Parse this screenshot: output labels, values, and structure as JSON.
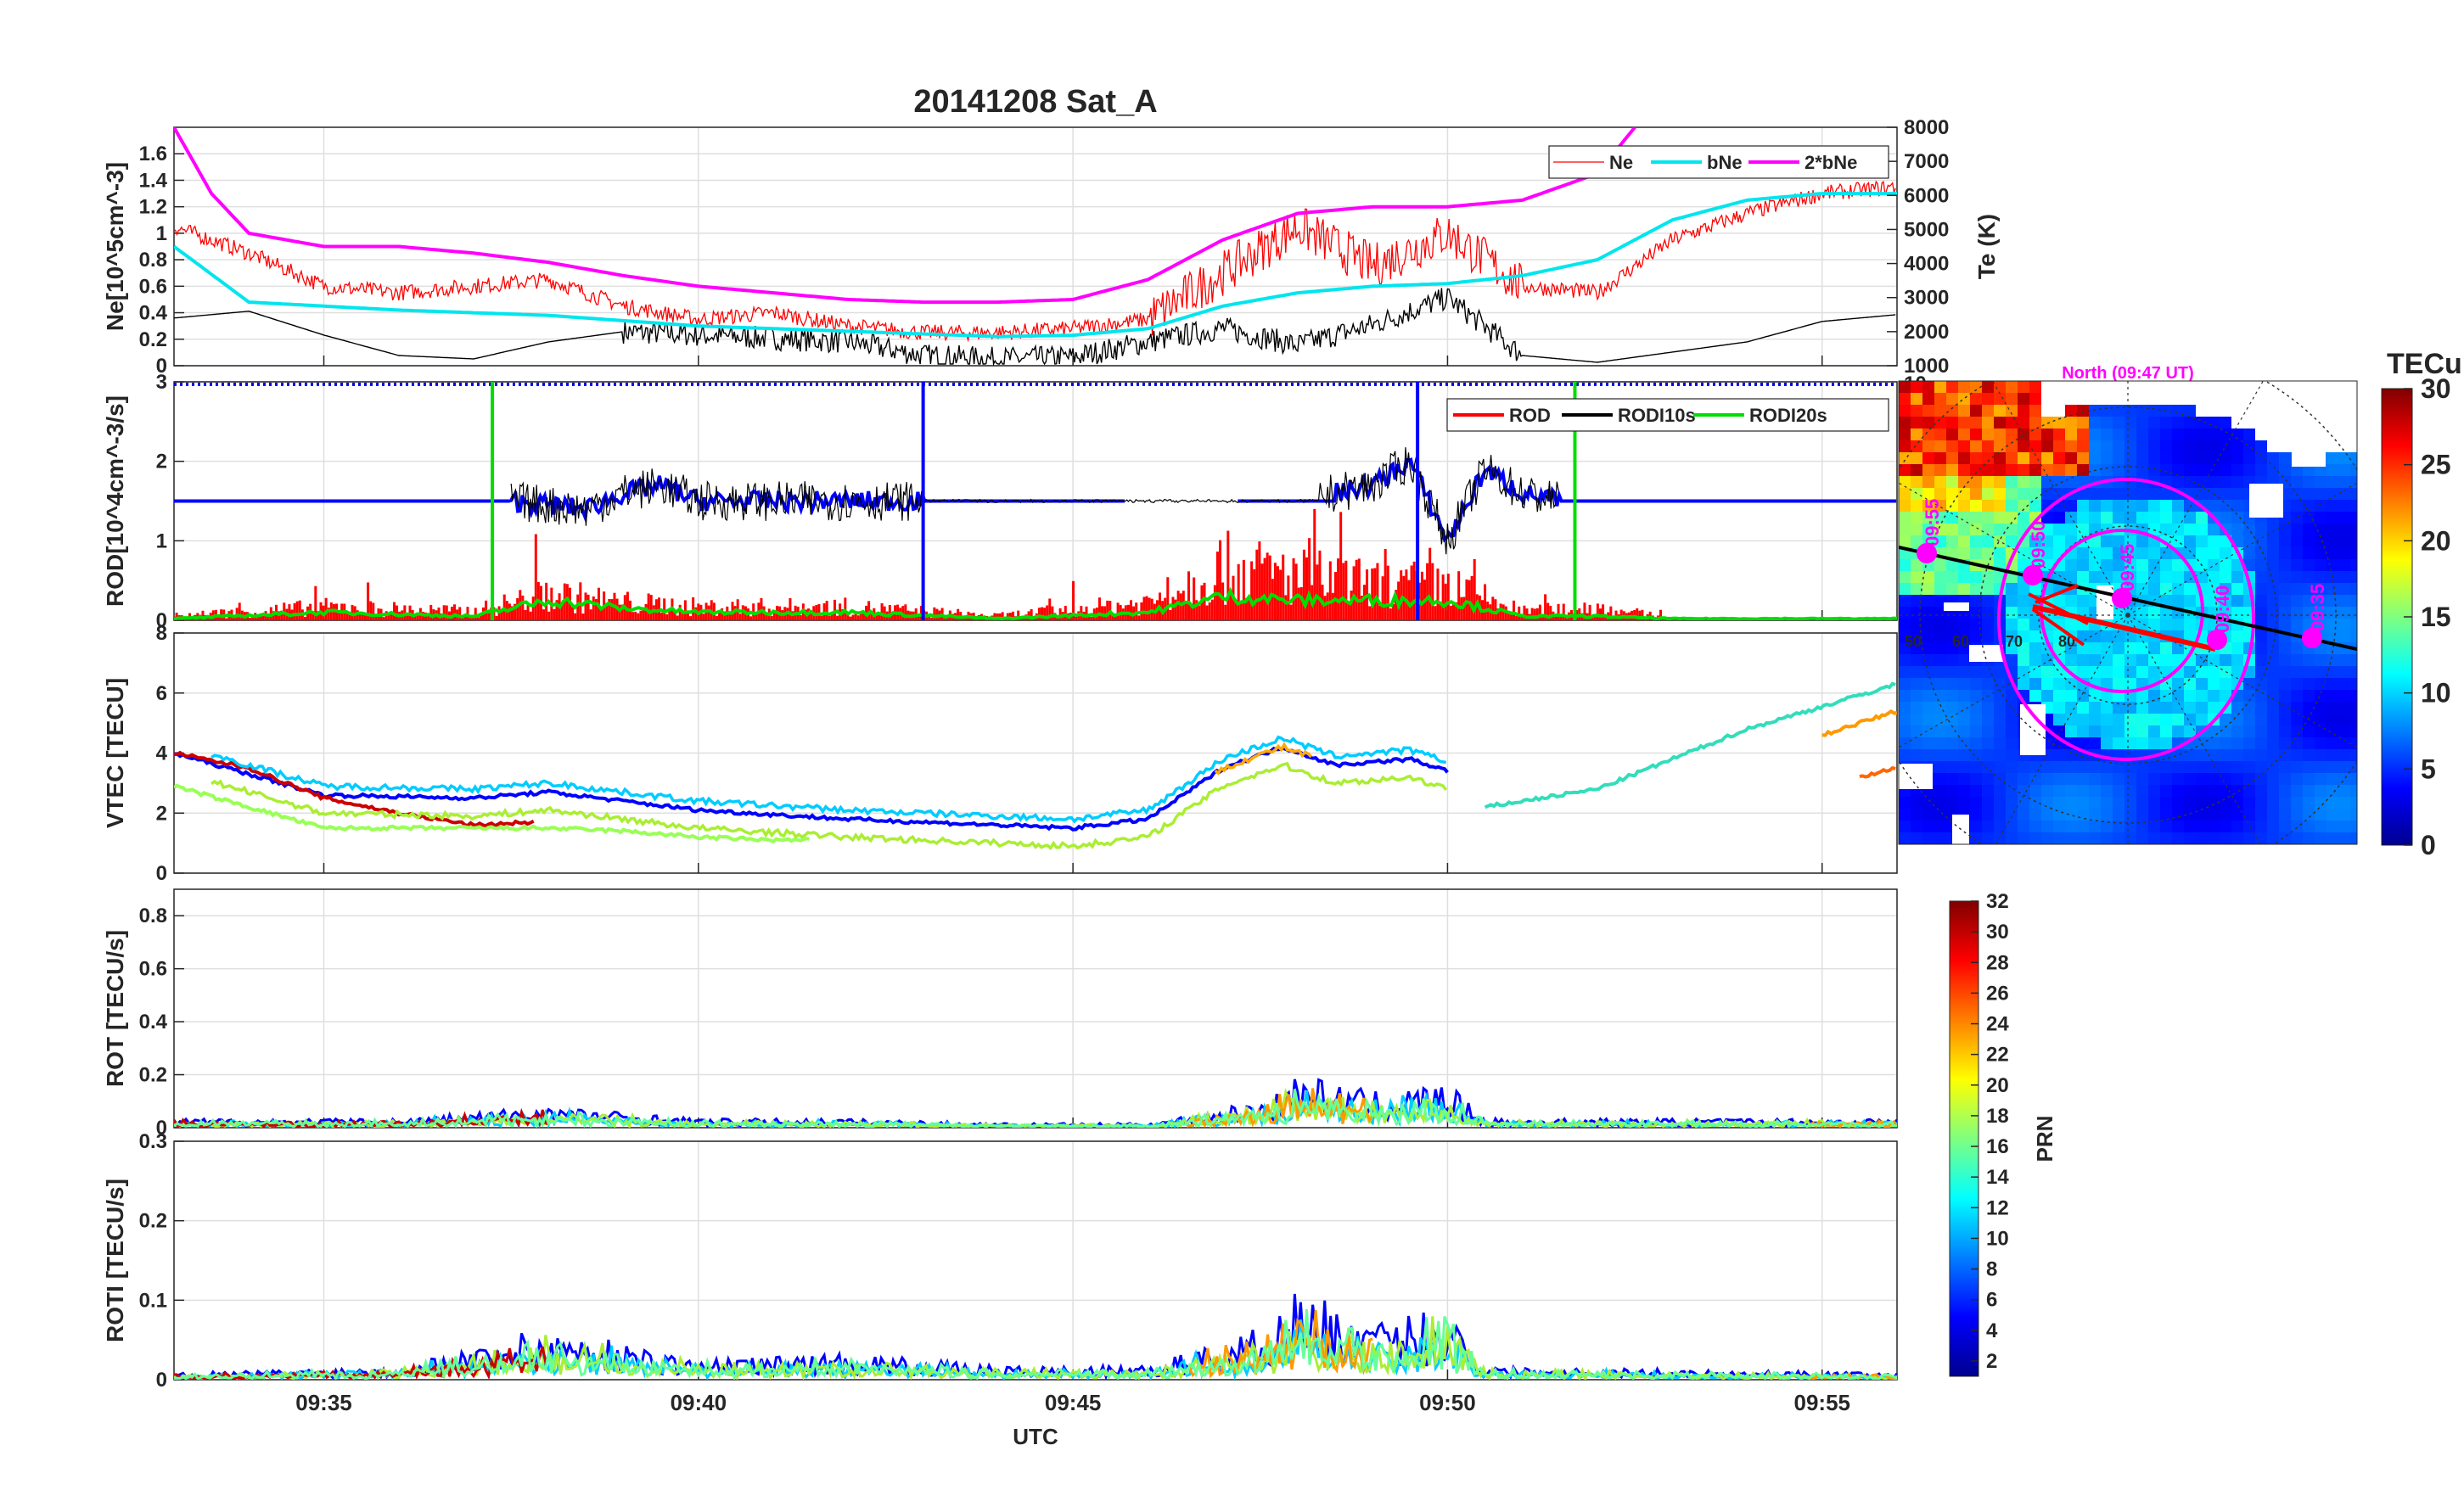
{
  "title": "20141208  Sat_A",
  "colors": {
    "ne": "#ff0000",
    "bne": "#00e5ee",
    "bne2": "#ff00ff",
    "te": "#000000",
    "rod": "#ff0000",
    "rodi10": "#000000",
    "rodi20": "#00dd00",
    "blue": "#0000ff",
    "grid": "#dfdfdf",
    "axis": "#262626",
    "track": "#ff00ff"
  },
  "x_axis": {
    "label": "UTC",
    "ticks": [
      "09:35",
      "09:40",
      "09:45",
      "09:50",
      "09:55"
    ],
    "range_min": [
      33.0,
      56.0
    ]
  },
  "ne_panel": {
    "ylabel": "Ne[10^5cm^-3]",
    "yticks": [
      "0",
      "0.2",
      "0.4",
      "0.6",
      "0.8",
      "1",
      "1.2",
      "1.4",
      "1.6"
    ],
    "ylim": [
      0,
      1.8
    ],
    "y2label": "Te (K)",
    "y2ticks": [
      "1000",
      "2000",
      "3000",
      "4000",
      "5000",
      "6000",
      "7000",
      "8000"
    ],
    "y2lim": [
      1000,
      8000
    ],
    "legend": [
      "Ne",
      "bNe",
      "2*bNe"
    ]
  },
  "rod_panel": {
    "ylabel": "ROD[10^4cm^-3/s]",
    "yticks": [
      "0",
      "1",
      "2",
      "3"
    ],
    "ylim": [
      0,
      3
    ],
    "y2ticks": [
      "10"
    ],
    "legend": [
      "ROD",
      "RODI10s",
      "RODI20s"
    ]
  },
  "vtec_panel": {
    "ylabel": "VTEC [TECU]",
    "yticks": [
      "0",
      "2",
      "4",
      "6",
      "8"
    ],
    "ylim": [
      0,
      8
    ]
  },
  "rot_panel": {
    "ylabel": "ROT [TECU/s]",
    "yticks": [
      "0",
      "0.2",
      "0.4",
      "0.6",
      "0.8"
    ],
    "ylim": [
      0,
      0.9
    ]
  },
  "roti_panel": {
    "ylabel": "ROTI [TECU/s]",
    "yticks": [
      "0",
      "0.1",
      "0.2",
      "0.3"
    ],
    "ylim": [
      0,
      0.3
    ]
  },
  "map": {
    "title": "North (09:47 UT)",
    "colorbar_title": "TECu",
    "colorbar_ticks": [
      "0",
      "5",
      "10",
      "15",
      "20",
      "25",
      "30"
    ],
    "lat_labels": [
      "50",
      "60",
      "70",
      "80"
    ],
    "track_labels": [
      "09:55",
      "09:50",
      "09:45",
      "09:40",
      "09:35"
    ]
  },
  "prn_colorbar": {
    "label": "PRN",
    "ticks": [
      "2",
      "4",
      "6",
      "8",
      "10",
      "12",
      "14",
      "16",
      "18",
      "20",
      "22",
      "24",
      "26",
      "28",
      "30",
      "32"
    ]
  },
  "chart_data": [
    {
      "type": "line",
      "panel": "Ne / Te",
      "x_unit": "UTC minutes after 09:00",
      "series": [
        {
          "name": "Ne",
          "x": [
            33.0,
            34.0,
            35.0,
            36.0,
            37.0,
            38.0,
            39.0,
            40.0,
            41.0,
            42.0,
            43.0,
            44.0,
            45.0,
            46.0,
            47.0,
            48.0,
            49.0,
            50.0,
            51.0,
            52.0,
            53.0,
            54.0,
            55.0,
            56.0
          ],
          "y": [
            1.05,
            0.85,
            0.6,
            0.55,
            0.6,
            0.65,
            0.45,
            0.35,
            0.4,
            0.3,
            0.25,
            0.25,
            0.28,
            0.35,
            0.7,
            1.05,
            0.75,
            1.0,
            0.6,
            0.55,
            0.95,
            1.15,
            1.3,
            1.35
          ]
        },
        {
          "name": "bNe",
          "x": [
            33.0,
            34.0,
            35.0,
            36.0,
            37.0,
            38.0,
            39.0,
            40.0,
            41.0,
            42.0,
            43.0,
            44.0,
            45.0,
            46.0,
            47.0,
            48.0,
            49.0,
            50.0,
            51.0,
            52.0,
            53.0,
            54.0,
            55.0,
            56.0
          ],
          "y": [
            0.9,
            0.48,
            0.45,
            0.42,
            0.4,
            0.38,
            0.34,
            0.3,
            0.28,
            0.26,
            0.24,
            0.22,
            0.23,
            0.28,
            0.45,
            0.55,
            0.6,
            0.62,
            0.68,
            0.8,
            1.1,
            1.25,
            1.3,
            1.3
          ]
        },
        {
          "name": "2*bNe",
          "x": [
            33.0,
            33.5,
            34.0,
            35.0,
            36.0,
            37.0,
            38.0,
            39.0,
            40.0,
            41.0,
            42.0,
            43.0,
            44.0,
            45.0,
            46.0,
            47.0,
            48.0,
            49.0,
            50.0,
            51.0,
            52.0,
            52.5
          ],
          "y": [
            1.8,
            1.3,
            1.0,
            0.9,
            0.9,
            0.85,
            0.78,
            0.68,
            0.6,
            0.55,
            0.5,
            0.48,
            0.48,
            0.5,
            0.65,
            0.95,
            1.15,
            1.2,
            1.2,
            1.25,
            1.45,
            1.8
          ]
        },
        {
          "name": "Te (K)",
          "x": [
            33.0,
            34.0,
            35.0,
            36.0,
            37.0,
            38.0,
            39.0,
            40.0,
            41.0,
            42.0,
            43.0,
            44.0,
            45.0,
            46.0,
            47.0,
            48.0,
            49.0,
            50.0,
            51.0,
            52.0,
            53.0,
            54.0,
            55.0,
            56.0
          ],
          "y": [
            2400,
            2600,
            1900,
            1300,
            1200,
            1700,
            2000,
            1900,
            1800,
            1700,
            1300,
            1200,
            1250,
            1700,
            2100,
            1600,
            2200,
            3000,
            1300,
            1100,
            1400,
            1700,
            2300,
            2500
          ]
        }
      ]
    },
    {
      "type": "line",
      "panel": "ROD",
      "x_unit": "UTC minutes after 09:00",
      "series": [
        {
          "name": "ROD",
          "x": [
            33.0,
            35.0,
            37.0,
            38.0,
            39.0,
            40.0,
            42.0,
            44.0,
            46.0,
            47.0,
            48.0,
            49.0,
            50.0,
            51.0,
            52.0,
            53.0,
            56.0
          ],
          "y": [
            0.05,
            0.15,
            0.1,
            0.3,
            0.2,
            0.15,
            0.15,
            0.05,
            0.2,
            0.6,
            0.5,
            0.4,
            0.4,
            0.1,
            0.15,
            0.02,
            0.02
          ]
        },
        {
          "name": "RODI10s",
          "x": [
            37.5,
            38.0,
            38.5,
            39.0,
            39.5,
            40.0,
            41.0,
            42.0,
            43.0,
            47.0,
            48.0,
            49.0,
            49.5,
            50.0,
            50.5,
            51.0,
            51.5
          ],
          "y": [
            1.5,
            1.45,
            1.4,
            1.6,
            1.7,
            1.5,
            1.5,
            1.5,
            1.5,
            1.5,
            1.5,
            1.7,
            2.0,
            1.0,
            1.9,
            1.6,
            1.5
          ]
        },
        {
          "name": "RODI20s",
          "x": [
            33.0,
            35.0,
            37.0,
            38.0,
            39.0,
            40.0,
            42.0,
            44.0,
            46.0,
            47.0,
            48.0,
            49.0,
            50.0,
            51.0,
            52.0,
            53.0,
            56.0
          ],
          "y": [
            0.02,
            0.1,
            0.05,
            0.25,
            0.15,
            0.1,
            0.1,
            0.02,
            0.1,
            0.3,
            0.25,
            0.25,
            0.25,
            0.05,
            0.05,
            0.02,
            0.02
          ]
        }
      ]
    },
    {
      "type": "line",
      "panel": "VTEC",
      "x_unit": "UTC minutes after 09:00",
      "series": [
        {
          "x": [
            33.0,
            35.0,
            37.0,
            38.0,
            40.0,
            42.0,
            44.0,
            45.0,
            46.0,
            47.0,
            47.8,
            48.5,
            49.5,
            50.0
          ],
          "y": [
            4.0,
            2.6,
            2.5,
            2.7,
            2.1,
            1.8,
            1.6,
            1.5,
            1.8,
            3.5,
            4.2,
            3.6,
            3.8,
            3.4
          ]
        },
        {
          "x": [
            33.0,
            34.0,
            35.0,
            36.0,
            37.0,
            37.8
          ],
          "y": [
            4.0,
            3.5,
            2.5,
            2.0,
            1.6,
            1.7
          ]
        },
        {
          "x": [
            33.0,
            34.0,
            35.0,
            37.0,
            38.0,
            39.0,
            40.0,
            41.0,
            41.5
          ],
          "y": [
            2.9,
            2.2,
            1.5,
            1.5,
            1.5,
            1.4,
            1.2,
            1.1,
            1.1
          ]
        },
        {
          "x": [
            50.5,
            52.0,
            54.0,
            56.0
          ],
          "y": [
            2.2,
            2.8,
            4.8,
            6.3
          ]
        },
        {
          "x": [
            55.0,
            56.0
          ],
          "y": [
            4.6,
            5.4
          ]
        },
        {
          "x": [
            55.5,
            56.0
          ],
          "y": [
            3.2,
            3.5
          ]
        }
      ]
    },
    {
      "type": "line",
      "panel": "ROT",
      "x_unit": "UTC minutes after 09:00",
      "series": [
        {
          "x": [
            33.0,
            36.0,
            38.0,
            40.0,
            42.0,
            44.0,
            46.0,
            47.5,
            48.0,
            49.0,
            50.0,
            50.5,
            56.0
          ],
          "y": [
            0.02,
            0.02,
            0.05,
            0.02,
            0.02,
            0.01,
            0.01,
            0.06,
            0.12,
            0.08,
            0.1,
            0.02,
            0.02
          ]
        }
      ]
    },
    {
      "type": "line",
      "panel": "ROTI",
      "x_unit": "UTC minutes after 09:00",
      "series": [
        {
          "x": [
            33.0,
            36.0,
            38.0,
            40.0,
            42.0,
            44.0,
            46.0,
            47.5,
            48.0,
            49.0,
            50.0,
            50.5,
            56.0
          ],
          "y": [
            0.005,
            0.01,
            0.04,
            0.015,
            0.02,
            0.01,
            0.01,
            0.04,
            0.07,
            0.04,
            0.06,
            0.01,
            0.005
          ]
        }
      ]
    }
  ]
}
